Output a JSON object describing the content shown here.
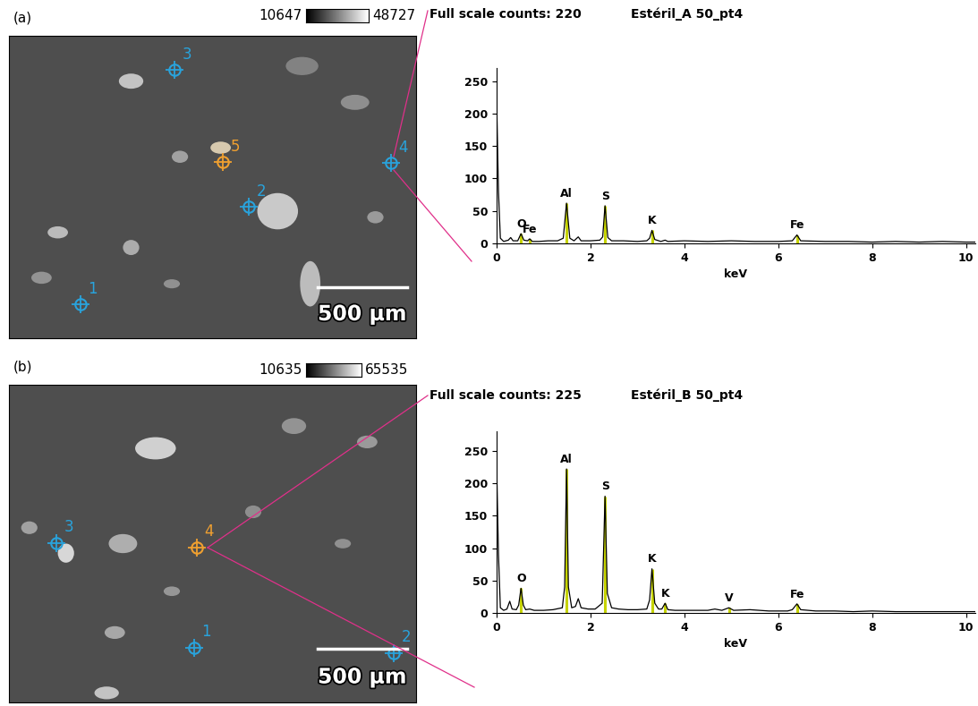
{
  "chart_data": [
    {
      "type": "line",
      "header": "Full scale counts: 220",
      "title": "Estéril_A 50_pt4",
      "xlabel": "keV",
      "color": "#000000",
      "x": [
        0,
        0.04,
        0.08,
        0.15,
        0.25,
        0.3,
        0.35,
        0.45,
        0.52,
        0.58,
        0.66,
        0.705,
        0.76,
        0.9,
        1.1,
        1.3,
        1.42,
        1.49,
        1.56,
        1.65,
        1.74,
        1.8,
        2.0,
        2.2,
        2.26,
        2.31,
        2.37,
        2.45,
        2.7,
        3.0,
        3.2,
        3.26,
        3.31,
        3.37,
        3.5,
        3.59,
        3.65,
        4.0,
        4.5,
        5.0,
        5.5,
        6.0,
        6.3,
        6.4,
        6.48,
        7.0,
        7.5,
        8.0,
        8.5,
        9.0,
        9.5,
        10.0,
        10.2
      ],
      "values": [
        220,
        80,
        8,
        3,
        5,
        9,
        4,
        4,
        15,
        5,
        4,
        7,
        3,
        3,
        4,
        4,
        8,
        62,
        8,
        4,
        10,
        4,
        4,
        5,
        10,
        58,
        9,
        4,
        4,
        3,
        4,
        8,
        20,
        6,
        3,
        5,
        3,
        4,
        3,
        4,
        3,
        3,
        4,
        13,
        4,
        3,
        3,
        2,
        3,
        2,
        3,
        2,
        2
      ],
      "xlim": [
        0,
        10.2
      ],
      "xticks": [
        0,
        2,
        4,
        6,
        8,
        10
      ],
      "ylim": [
        0,
        270
      ],
      "yticks": [
        0,
        50,
        100,
        150,
        200,
        250
      ],
      "annotations": [
        {
          "text": "O",
          "x": 0.52
        },
        {
          "text": "Fe",
          "x": 0.705
        },
        {
          "text": "Al",
          "x": 1.49
        },
        {
          "text": "S",
          "x": 2.31
        },
        {
          "text": "K",
          "x": 3.31
        },
        {
          "text": "Fe",
          "x": 6.4
        }
      ]
    },
    {
      "type": "line",
      "header": "Full scale counts: 225",
      "title": "Estéril_B 50_pt4",
      "xlabel": "keV",
      "color": "#000000",
      "x": [
        0,
        0.04,
        0.08,
        0.15,
        0.22,
        0.28,
        0.33,
        0.42,
        0.47,
        0.52,
        0.57,
        0.62,
        0.705,
        0.8,
        1.0,
        1.2,
        1.4,
        1.45,
        1.49,
        1.53,
        1.6,
        1.68,
        1.74,
        1.8,
        1.95,
        2.1,
        2.25,
        2.31,
        2.36,
        2.45,
        2.6,
        2.8,
        3.0,
        3.2,
        3.26,
        3.31,
        3.37,
        3.45,
        3.52,
        3.59,
        3.65,
        3.8,
        4.0,
        4.5,
        4.65,
        4.8,
        4.95,
        5.05,
        5.4,
        5.8,
        6.2,
        6.3,
        6.4,
        6.48,
        6.8,
        7.2,
        7.6,
        8.0,
        8.5,
        9.0,
        9.5,
        10.0,
        10.2
      ],
      "values": [
        228,
        90,
        8,
        4,
        6,
        18,
        6,
        5,
        12,
        38,
        12,
        5,
        6,
        4,
        4,
        5,
        8,
        40,
        222,
        40,
        8,
        10,
        22,
        8,
        6,
        6,
        15,
        180,
        30,
        8,
        6,
        5,
        5,
        6,
        20,
        68,
        15,
        6,
        6,
        15,
        5,
        4,
        4,
        4,
        6,
        4,
        8,
        4,
        5,
        3,
        3,
        5,
        14,
        5,
        3,
        3,
        2,
        3,
        2,
        2,
        2,
        2,
        2
      ],
      "xlim": [
        0,
        10.2
      ],
      "xticks": [
        0,
        2,
        4,
        6,
        8,
        10
      ],
      "ylim": [
        0,
        280
      ],
      "yticks": [
        0,
        50,
        100,
        150,
        200,
        250
      ],
      "annotations": [
        {
          "text": "O",
          "x": 0.52
        },
        {
          "text": "Al",
          "x": 1.49
        },
        {
          "text": "S",
          "x": 2.31
        },
        {
          "text": "K",
          "x": 3.31
        },
        {
          "text": "K",
          "x": 3.59
        },
        {
          "text": "V",
          "x": 4.95
        },
        {
          "text": "Fe",
          "x": 6.4
        }
      ]
    }
  ],
  "images": [
    {
      "panel": "(a)",
      "gray_range": [
        10647,
        48727
      ],
      "scale_bar": "500 µm",
      "points": [
        {
          "label": "1",
          "color": "#29a3dc"
        },
        {
          "label": "2",
          "color": "#29a3dc"
        },
        {
          "label": "3",
          "color": "#29a3dc"
        },
        {
          "label": "4",
          "color": "#29a3dc"
        },
        {
          "label": "5",
          "color": "#f0a030"
        }
      ]
    },
    {
      "panel": "(b)",
      "gray_range": [
        10635,
        65535
      ],
      "scale_bar": "500 µm",
      "points": [
        {
          "label": "1",
          "color": "#29a3dc"
        },
        {
          "label": "2",
          "color": "#29a3dc"
        },
        {
          "label": "3",
          "color": "#29a3dc"
        },
        {
          "label": "4",
          "color": "#f0a030"
        }
      ]
    }
  ]
}
